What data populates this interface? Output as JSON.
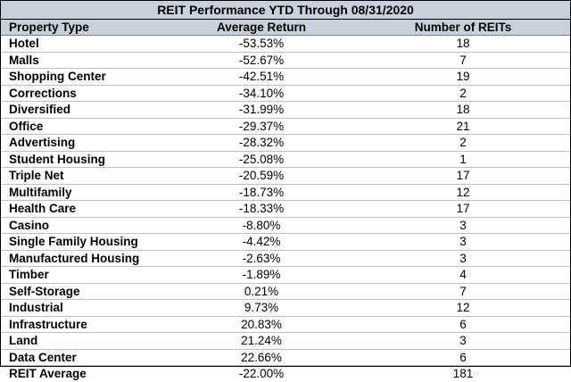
{
  "title": "REIT Performance YTD Through 08/31/2020",
  "headers": {
    "property_type": "Property Type",
    "average_return": "Average Return",
    "number_of_reits": "Number of REITs"
  },
  "rows": [
    {
      "type": "Hotel",
      "ret": "-53.53%",
      "count": "18"
    },
    {
      "type": "Malls",
      "ret": "-52.67%",
      "count": "7"
    },
    {
      "type": "Shopping Center",
      "ret": "-42.51%",
      "count": "19"
    },
    {
      "type": "Corrections",
      "ret": "-34.10%",
      "count": "2"
    },
    {
      "type": "Diversified",
      "ret": "-31.99%",
      "count": "18"
    },
    {
      "type": "Office",
      "ret": "-29.37%",
      "count": "21"
    },
    {
      "type": "Advertising",
      "ret": "-28.32%",
      "count": "2"
    },
    {
      "type": "Student Housing",
      "ret": "-25.08%",
      "count": "1"
    },
    {
      "type": "Triple Net",
      "ret": "-20.59%",
      "count": "17"
    },
    {
      "type": "Multifamily",
      "ret": "-18.73%",
      "count": "12"
    },
    {
      "type": "Health Care",
      "ret": "-18.33%",
      "count": "17"
    },
    {
      "type": "Casino",
      "ret": "-8.80%",
      "count": "3"
    },
    {
      "type": "Single Family Housing",
      "ret": "-4.42%",
      "count": "3"
    },
    {
      "type": "Manufactured Housing",
      "ret": "-2.63%",
      "count": "3"
    },
    {
      "type": "Timber",
      "ret": "-1.89%",
      "count": "4"
    },
    {
      "type": "Self-Storage",
      "ret": "0.21%",
      "count": "7"
    },
    {
      "type": "Industrial",
      "ret": "9.73%",
      "count": "12"
    },
    {
      "type": "Infrastructure",
      "ret": "20.83%",
      "count": "6"
    },
    {
      "type": "Land",
      "ret": "21.24%",
      "count": "3"
    },
    {
      "type": "Data Center",
      "ret": "22.66%",
      "count": "6"
    }
  ],
  "average": {
    "type": "REIT Average",
    "ret": "-22.00%",
    "count": "181"
  },
  "colors": {
    "header_bg": "#c8d0dc",
    "border": "#000000",
    "row_divider": "#bfbfbf"
  }
}
